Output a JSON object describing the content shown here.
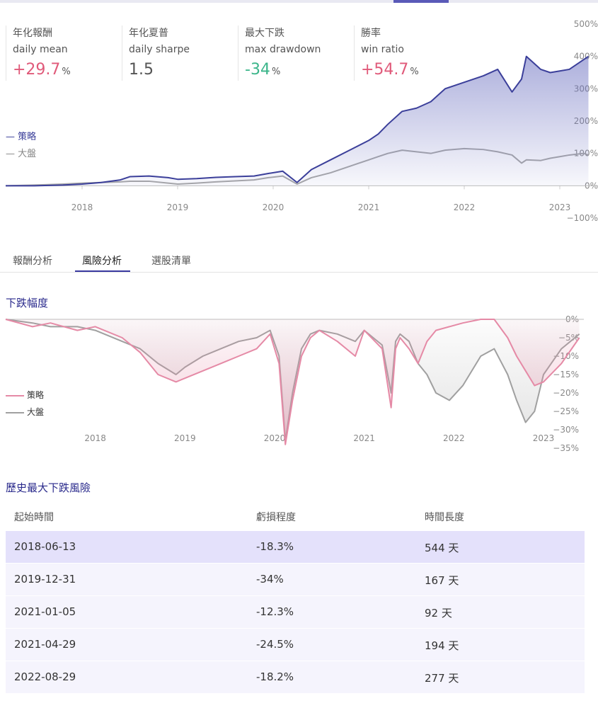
{
  "stats": [
    {
      "zh": "年化報酬",
      "en": "daily mean",
      "value": "+29.7",
      "unit": "%",
      "color": "#e05a7a"
    },
    {
      "zh": "年化夏普",
      "en": "daily sharpe",
      "value": "1.5",
      "unit": "",
      "color": "#555555"
    },
    {
      "zh": "最大下跌",
      "en": "max drawdown",
      "value": "-34",
      "unit": "%",
      "color": "#3bb58a"
    },
    {
      "zh": "勝率",
      "en": "win ratio",
      "value": "+54.7",
      "unit": "%",
      "color": "#e05a7a"
    }
  ],
  "colors": {
    "strategy": "#3b3f9a",
    "benchmark": "#a8a8a8",
    "drawdown_strategy": "#e58aa6",
    "drawdown_benchmark": "#a0a0a0",
    "accent": "#3a3aa0",
    "highlight_row": "#e4e1fb",
    "row_bg": "#f5f4fd"
  },
  "tabs": [
    {
      "label": "報酬分析",
      "active": false
    },
    {
      "label": "風險分析",
      "active": true
    },
    {
      "label": "選股清單",
      "active": false
    }
  ],
  "drawdown_section": {
    "title": "下跌幅度"
  },
  "history_section": {
    "title": "歷史最大下跌風險"
  },
  "table": {
    "headers": [
      "起始時間",
      "虧損程度",
      "時間長度"
    ],
    "rows": [
      [
        "2018-06-13",
        "-18.3%",
        "544 天"
      ],
      [
        "2019-12-31",
        "-34%",
        "167 天"
      ],
      [
        "2021-01-05",
        "-12.3%",
        "92 天"
      ],
      [
        "2021-04-29",
        "-24.5%",
        "194 天"
      ],
      [
        "2022-08-29",
        "-18.2%",
        "277 天"
      ]
    ]
  },
  "chart_data": [
    {
      "type": "area",
      "legend": [
        "策略",
        "大盤"
      ],
      "legend_position": "left",
      "x_ticks": [
        "2018",
        "2019",
        "2020",
        "2021",
        "2022",
        "2023"
      ],
      "y_ticks": [
        "500%",
        "400%",
        "300%",
        "200%",
        "100%",
        "0%",
        "−100%"
      ],
      "ylim": [
        -100,
        500
      ],
      "x": [
        2017.2,
        2017.5,
        2017.8,
        2018.0,
        2018.2,
        2018.4,
        2018.5,
        2018.7,
        2018.9,
        2019.0,
        2019.2,
        2019.4,
        2019.6,
        2019.8,
        2019.95,
        2020.1,
        2020.25,
        2020.4,
        2020.6,
        2020.8,
        2021.0,
        2021.1,
        2021.2,
        2021.35,
        2021.5,
        2021.65,
        2021.8,
        2022.0,
        2022.2,
        2022.35,
        2022.5,
        2022.6,
        2022.65,
        2022.8,
        2022.9,
        2023.0,
        2023.1,
        2023.25,
        2023.3
      ],
      "series": [
        {
          "name": "策略",
          "values": [
            0,
            0,
            2,
            5,
            10,
            18,
            28,
            30,
            25,
            20,
            22,
            26,
            28,
            30,
            38,
            45,
            10,
            50,
            80,
            110,
            140,
            160,
            190,
            230,
            240,
            260,
            300,
            320,
            340,
            360,
            290,
            330,
            400,
            360,
            350,
            355,
            360,
            390,
            400
          ]
        },
        {
          "name": "大盤",
          "values": [
            0,
            2,
            5,
            8,
            10,
            12,
            14,
            14,
            8,
            5,
            8,
            12,
            15,
            18,
            25,
            30,
            5,
            25,
            40,
            60,
            80,
            90,
            100,
            110,
            105,
            100,
            110,
            115,
            112,
            105,
            95,
            70,
            80,
            78,
            85,
            90,
            95,
            100,
            95
          ]
        }
      ]
    },
    {
      "type": "area",
      "legend": [
        "策略",
        "大盤"
      ],
      "legend_position": "left",
      "x_ticks": [
        "2018",
        "2019",
        "2020",
        "2021",
        "2022",
        "2023"
      ],
      "y_ticks": [
        "0%",
        "−5%",
        "−10%",
        "−15%",
        "−20%",
        "−25%",
        "−30%",
        "−35%"
      ],
      "ylim": [
        -35,
        0
      ],
      "x": [
        2017.0,
        2017.3,
        2017.5,
        2017.8,
        2018.0,
        2018.3,
        2018.5,
        2018.7,
        2018.9,
        2019.0,
        2019.2,
        2019.4,
        2019.6,
        2019.8,
        2019.95,
        2020.05,
        2020.12,
        2020.2,
        2020.3,
        2020.4,
        2020.5,
        2020.7,
        2020.9,
        2021.0,
        2021.2,
        2021.3,
        2021.35,
        2021.4,
        2021.5,
        2021.6,
        2021.7,
        2021.8,
        2021.95,
        2022.1,
        2022.3,
        2022.45,
        2022.6,
        2022.7,
        2022.8,
        2022.9,
        2023.0,
        2023.2,
        2023.4
      ],
      "series": [
        {
          "name": "策略",
          "values": [
            0,
            -2,
            -1,
            -3,
            -2,
            -5,
            -9,
            -15,
            -17,
            -16,
            -14,
            -12,
            -10,
            -8,
            -4,
            -12,
            -34,
            -22,
            -10,
            -5,
            -3,
            -6,
            -10,
            -3,
            -8,
            -24,
            -8,
            -5,
            -8,
            -12,
            -6,
            -3,
            -2,
            -1,
            0,
            0,
            -5,
            -10,
            -14,
            -18,
            -17,
            -12,
            -5
          ]
        },
        {
          "name": "大盤",
          "values": [
            0,
            -1,
            -2,
            -2,
            -3,
            -6,
            -8,
            -12,
            -15,
            -13,
            -10,
            -8,
            -6,
            -5,
            -3,
            -10,
            -33,
            -20,
            -8,
            -4,
            -3,
            -4,
            -6,
            -3,
            -7,
            -20,
            -6,
            -4,
            -6,
            -12,
            -15,
            -20,
            -22,
            -18,
            -10,
            -8,
            -15,
            -22,
            -28,
            -25,
            -15,
            -8,
            -4
          ]
        }
      ]
    }
  ]
}
